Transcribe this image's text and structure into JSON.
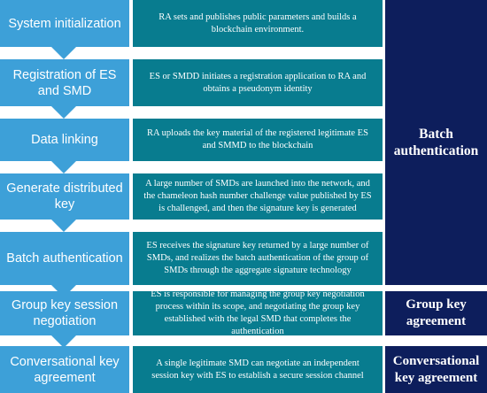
{
  "colors": {
    "step": "#3da0d8",
    "description": "#087c8f",
    "phase": "#0d1e5c",
    "arrow": "#3da0d8"
  },
  "steps": [
    {
      "label": "System initialization",
      "description": "RA sets and publishes public parameters and builds a blockchain environment."
    },
    {
      "label": "Registration of ES and SMD",
      "description": "ES or SMDD initiates a registration application to RA and obtains a pseudonym identity"
    },
    {
      "label": "Data linking",
      "description": "RA uploads the key material of the registered legitimate ES and SMMD to the blockchain"
    },
    {
      "label": "Generate distributed key",
      "description": "A large number of SMDs are launched into the network, and the chameleon hash number challenge value published by ES is challenged, and then the signature key is generated"
    },
    {
      "label": "Batch authentication",
      "description": "ES receives the signature key returned by a large number of SMDs, and realizes the batch authentication of the group of SMDs through the aggregate signature technology"
    },
    {
      "label": "Group key session negotiation",
      "description": "ES is responsible for managing the group key negotiation process within its scope, and negotiating the group key established with the legal SMD that completes the authentication"
    },
    {
      "label": "Conversational key agreement",
      "description": "A single legitimate SMD can negotiate an independent session key with ES to establish a secure session channel"
    }
  ],
  "phases": [
    {
      "label": "Batch authentication"
    },
    {
      "label": "Group key agreement"
    },
    {
      "label": "Conversational key agreement"
    }
  ]
}
